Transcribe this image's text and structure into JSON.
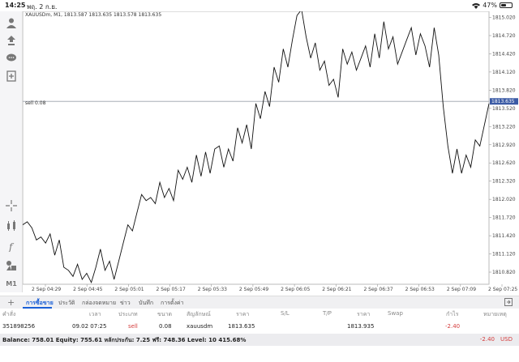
{
  "status_bar": {
    "time": "14:25",
    "date": "พฤ. 2 ก.ย.",
    "battery": "47%",
    "battery_level": 0.47
  },
  "toolbar": {
    "icons": [
      "account-icon",
      "trade-icon",
      "chat-icon",
      "add-document-icon",
      "crosshair-icon",
      "indicators-icon",
      "function-icon",
      "objects-icon"
    ],
    "timeframe_label": "M1"
  },
  "chart": {
    "header": "XAUUSDm, M1, 1813.587 1813.635 1813.578 1813.635",
    "sell_label": "sell 0.08",
    "current_price": "1813.635",
    "background": "#ffffff",
    "line_color": "#111111",
    "price_line_color": "#9aa0aa",
    "current_price_bg": "#3b5ba5"
  },
  "chart_data": {
    "type": "line",
    "symbol": "XAUUSDm",
    "timeframe": "M1",
    "x_ticks": [
      "2 Sep 04:29",
      "2 Sep 04:45",
      "2 Sep 05:01",
      "2 Sep 05:17",
      "2 Sep 05:33",
      "2 Sep 05:49",
      "2 Sep 06:05",
      "2 Sep 06:21",
      "2 Sep 06:37",
      "2 Sep 06:53",
      "2 Sep 07:09",
      "2 Sep 07:25"
    ],
    "y_ticks": [
      "1815.020",
      "1814.720",
      "1814.420",
      "1814.120",
      "1813.820",
      "1813.520",
      "1813.220",
      "1812.920",
      "1812.620",
      "1812.320",
      "1812.020",
      "1811.720",
      "1811.420",
      "1811.120",
      "1810.820"
    ],
    "ylim": [
      1810.62,
      1815.12
    ],
    "price_line": 1813.635,
    "series": [
      {
        "values": [
          1811.6,
          1811.65,
          1811.55,
          1811.35,
          1811.4,
          1811.3,
          1811.45,
          1811.1,
          1811.35,
          1810.9,
          1810.85,
          1810.75,
          1810.95,
          1810.7,
          1810.8,
          1810.65,
          1810.9,
          1811.2,
          1810.85,
          1811.0,
          1810.7,
          1811.0,
          1811.3,
          1811.6,
          1811.5,
          1811.8,
          1812.1,
          1812.0,
          1812.05,
          1811.95,
          1812.3,
          1812.05,
          1812.2,
          1812.0,
          1812.5,
          1812.35,
          1812.55,
          1812.3,
          1812.75,
          1812.4,
          1812.8,
          1812.45,
          1812.85,
          1812.9,
          1812.55,
          1812.85,
          1812.65,
          1813.2,
          1812.95,
          1813.25,
          1812.85,
          1813.6,
          1813.35,
          1813.8,
          1813.55,
          1814.2,
          1813.95,
          1814.5,
          1814.2,
          1814.65,
          1815.05,
          1815.15,
          1814.7,
          1814.35,
          1814.6,
          1814.15,
          1814.3,
          1813.9,
          1814.0,
          1813.7,
          1814.5,
          1814.25,
          1814.45,
          1814.15,
          1814.35,
          1814.55,
          1814.2,
          1814.75,
          1814.35,
          1814.95,
          1814.5,
          1814.7,
          1814.25,
          1814.45,
          1814.65,
          1814.85,
          1814.4,
          1814.75,
          1814.55,
          1814.2,
          1814.85,
          1814.4,
          1813.55,
          1812.9,
          1812.45,
          1812.85,
          1812.45,
          1812.75,
          1812.55,
          1813.0,
          1812.9,
          1813.25,
          1813.6
        ]
      }
    ]
  },
  "tabs": [
    "การซื้อขาย",
    "ประวัติ",
    "กล่องจดหมาย",
    "ข่าว",
    "บันทึก",
    "การตั้งค่า"
  ],
  "table": {
    "headers": [
      "คำสั่ง",
      "เวลา",
      "ประเภท",
      "ขนาด",
      "สัญลักษณ์",
      "ราคา",
      "S/L",
      "T/P",
      "ราคา",
      "Swap",
      "กำไร",
      "หมายเหตุ"
    ],
    "row": {
      "order": "351898256",
      "time": "09.02 07:25",
      "type": "sell",
      "size": "0.08",
      "symbol": "xauusdm",
      "price": "1813.635",
      "current_price": "1813.935",
      "profit": "-2.40"
    }
  },
  "balance_bar": {
    "text": "Balance: 758.01 Equity: 755.61 หลักประกัน: 7.25 ฟรี: 748.36 Level: 10 415.68%",
    "profit": "-2.40",
    "currency": "USD"
  }
}
